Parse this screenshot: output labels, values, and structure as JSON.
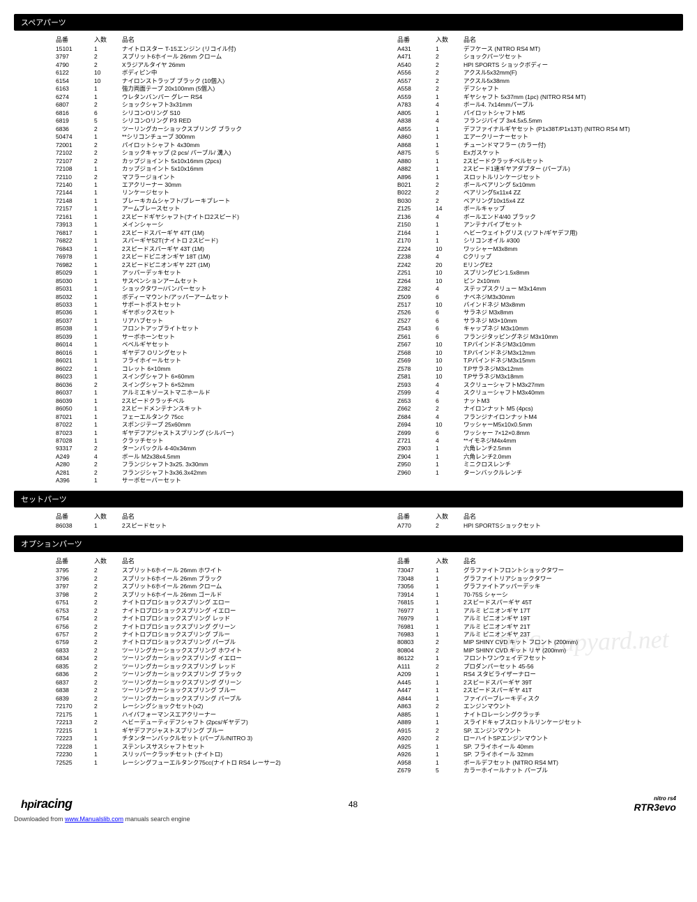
{
  "headers": {
    "pn": "品番",
    "qty": "入数",
    "name": "品名"
  },
  "sections": [
    {
      "title": "スペアパーツ",
      "left": [
        [
          "15101",
          "1",
          "ナイトロスター T-15エンジン (リコイル付)"
        ],
        [
          "3797",
          "2",
          "スプリット6ホイール 26mm クローム"
        ],
        [
          "4790",
          "2",
          "Xラジアルタイヤ 26mm"
        ],
        [
          "6122",
          "10",
          "ボディピン中"
        ],
        [
          "6154",
          "10",
          "ナイロンストラップ ブラック (10個入)"
        ],
        [
          "6163",
          "1",
          "強力両面テープ 20x100mm (5個入)"
        ],
        [
          "6274",
          "1",
          "ウレタンバンパー グレー RS4"
        ],
        [
          "6807",
          "2",
          "ショックシャフト3x31mm"
        ],
        [
          "6816",
          "6",
          "シリコンOリング S10"
        ],
        [
          "6819",
          "5",
          "シリコンOリング P3 RED"
        ],
        [
          "6836",
          "2",
          "ツーリングカーショックスプリング ブラック"
        ],
        [
          "50474",
          "1",
          "**シリコンチューブ 300mm"
        ],
        [
          "72001",
          "2",
          "パイロットシャフト 4x30mm"
        ],
        [
          "72102",
          "2",
          "ショックキャップ (2 pcs/ パープル/ 溝入)"
        ],
        [
          "72107",
          "2",
          "カップジョイント 5x10x16mm (2pcs)"
        ],
        [
          "72108",
          "1",
          "カップジョイント 5x10x16mm"
        ],
        [
          "72110",
          "2",
          "マフラージョイント"
        ],
        [
          "72140",
          "1",
          "エアクリーナー 30mm"
        ],
        [
          "72144",
          "1",
          "リンケージセット"
        ],
        [
          "72148",
          "1",
          "ブレーキカムシャフト/ブレーキプレート"
        ],
        [
          "72157",
          "1",
          "アームブレースセット"
        ],
        [
          "72161",
          "1",
          "2スピードギヤシャフト(ナイトロ2スピード)"
        ],
        [
          "73913",
          "1",
          "メインシャーシ"
        ],
        [
          "76817",
          "1",
          "2スピードスパーギヤ 47T (1M)"
        ],
        [
          "76822",
          "1",
          "スパーギヤ52T(ナイトロ 2スピード)"
        ],
        [
          "76843",
          "1",
          "2スピードスパーギヤ 43T (1M)"
        ],
        [
          "76978",
          "1",
          "2スピードピニオンギヤ 18T (1M)"
        ],
        [
          "76982",
          "1",
          "2スピードピニオンギヤ 22T (1M)"
        ],
        [
          "85029",
          "1",
          "アッパーデッキセット"
        ],
        [
          "85030",
          "1",
          "サスペンションアームセット"
        ],
        [
          "85031",
          "1",
          "ショックタワー/バンパーセット"
        ],
        [
          "85032",
          "1",
          "ボディーマウント/アッパーアームセット"
        ],
        [
          "85033",
          "1",
          "サポートポストセット"
        ],
        [
          "85036",
          "1",
          "ギヤボックスセット"
        ],
        [
          "85037",
          "1",
          "リアハブセット"
        ],
        [
          "85038",
          "1",
          "フロントアップライトセット"
        ],
        [
          "85039",
          "1",
          "サーボホーンセット"
        ],
        [
          "86014",
          "1",
          "ベベルギヤセット"
        ],
        [
          "86016",
          "1",
          "ギヤデフ Oリングセット"
        ],
        [
          "86021",
          "1",
          "フライホイールセット"
        ],
        [
          "86022",
          "1",
          "コレット 6×10mm"
        ],
        [
          "86023",
          "1",
          "スイングシャフト 6×60mm"
        ],
        [
          "86036",
          "2",
          "スイングシャフト 6×52mm"
        ],
        [
          "86037",
          "1",
          "アルミエキゾーストマニホールド"
        ],
        [
          "86039",
          "1",
          "2スピードクラッチベル"
        ],
        [
          "86050",
          "1",
          "2スピードメンテナンスキット"
        ],
        [
          "87021",
          "1",
          "フェーエルタンク 75cc"
        ],
        [
          "87022",
          "1",
          "スポンジテープ 25x60mm"
        ],
        [
          "87023",
          "1",
          "ギヤデフアジャストスプリング (シルバー)"
        ],
        [
          "87028",
          "1",
          "クラッチセット"
        ],
        [
          "93317",
          "2",
          "ターンバックル 4-40x34mm"
        ],
        [
          "A249",
          "4",
          "ボール M2x38x4.5mm"
        ],
        [
          "A280",
          "2",
          "フランジシャフト3x25. 3x30mm"
        ],
        [
          "A281",
          "2",
          "フランジシャフト3x36.3x42mm"
        ],
        [
          "A396",
          "1",
          "サーボセーバーセット"
        ]
      ],
      "right": [
        [
          "A431",
          "1",
          "デフケース (NITRO RS4 MT)"
        ],
        [
          "A471",
          "2",
          "ショックパーツセット"
        ],
        [
          "A540",
          "2",
          "HPI SPORTS ショックボディー"
        ],
        [
          "A556",
          "2",
          "アクスル5x32mm(F)"
        ],
        [
          "A557",
          "2",
          "アクスル5x38mm"
        ],
        [
          "A558",
          "2",
          "デフシャフト"
        ],
        [
          "A559",
          "1",
          "ギヤシャフト 5x37mm (1pc) (NITRO RS4 MT)"
        ],
        [
          "A783",
          "4",
          "ボール4. 7x14mmパープル"
        ],
        [
          "A805",
          "1",
          "パイロットシャフトM5"
        ],
        [
          "A838",
          "4",
          "フランジパイプ 3x4.5x5.5mm"
        ],
        [
          "A855",
          "1",
          "デフファイナルギヤセット (P1x38T/P1x13T) (NITRO RS4 MT)"
        ],
        [
          "A860",
          "1",
          "エアークリーナーセット"
        ],
        [
          "A868",
          "1",
          "チューンドマフラー (カラー付)"
        ],
        [
          "A875",
          "5",
          "Exガスケット"
        ],
        [
          "A880",
          "1",
          "2スピードクラッチベルセット"
        ],
        [
          "A882",
          "1",
          "2スピード1速ギヤアダプター (パープル)"
        ],
        [
          "A896",
          "1",
          "スロットルリンケージセット"
        ],
        [
          "B021",
          "2",
          "ボールベアリング 5x10mm"
        ],
        [
          "B022",
          "2",
          "ベアリング5x11x4 ZZ"
        ],
        [
          "B030",
          "2",
          "ベアリング10x15x4 ZZ"
        ],
        [
          "Z125",
          "14",
          "ボールキャップ"
        ],
        [
          "Z136",
          "4",
          "ボールエンド4/40 ブラック"
        ],
        [
          "Z150",
          "1",
          "アンテナパイプセット"
        ],
        [
          "Z164",
          "1",
          "ヘビーウェイトグリス (ソフト/ギヤデフ用)"
        ],
        [
          "Z170",
          "1",
          "シリコンオイル #300"
        ],
        [
          "Z224",
          "10",
          "ワッシャーM3x8mm"
        ],
        [
          "Z238",
          "4",
          "Cクリップ"
        ],
        [
          "Z242",
          "20",
          "EリングE2"
        ],
        [
          "Z251",
          "10",
          "スプリングピン1.5x8mm"
        ],
        [
          "Z264",
          "10",
          "ピン 2x10mm"
        ],
        [
          "Z282",
          "4",
          "ステップスクリュー M3x14mm"
        ],
        [
          "Z509",
          "6",
          "ナベネジM3x30mm"
        ],
        [
          "Z517",
          "10",
          "バインドネジ M3x8mm"
        ],
        [
          "Z526",
          "6",
          "サラネジ M3x8mm"
        ],
        [
          "Z527",
          "6",
          "サラネジ M3×10mm"
        ],
        [
          "Z543",
          "6",
          "キャップネジ M3x10mm"
        ],
        [
          "Z561",
          "6",
          "フランジタッピングネジ M3x10mm"
        ],
        [
          "Z567",
          "10",
          "T.PバインドネジM3x10mm"
        ],
        [
          "Z568",
          "10",
          "T.PバインドネジM3x12mm"
        ],
        [
          "Z569",
          "10",
          "T.PバインドネジM3x15mm"
        ],
        [
          "Z578",
          "10",
          "T.PサラネジM3x12mm"
        ],
        [
          "Z581",
          "10",
          "T.PサラネジM3x18mm"
        ],
        [
          "Z593",
          "4",
          "スクリューシャフトM3x27mm"
        ],
        [
          "Z599",
          "4",
          "スクリューシャフトM3x40mm"
        ],
        [
          "Z653",
          "6",
          "ナットM3"
        ],
        [
          "Z662",
          "2",
          "ナイロンナット M5 (4pcs)"
        ],
        [
          "Z684",
          "4",
          "フランジナイロンナットM4"
        ],
        [
          "Z694",
          "10",
          "ワッシャーM5x10x0.5mm"
        ],
        [
          "Z699",
          "6",
          "ワッシャー 7×12×0.8mm"
        ],
        [
          "Z721",
          "4",
          "**イモネジM4x4mm"
        ],
        [
          "Z903",
          "1",
          "六角レンチ2.5mm"
        ],
        [
          "Z904",
          "1",
          "六角レンチ2.0mm"
        ],
        [
          "Z950",
          "1",
          "ミニクロスレンチ"
        ],
        [
          "Z960",
          "1",
          "ターンバックルレンチ"
        ]
      ]
    },
    {
      "title": "セットパーツ",
      "left": [
        [
          "86038",
          "1",
          "2スピードセット"
        ]
      ],
      "right": [
        [
          "A770",
          "2",
          "HPI SPORTSショックセット"
        ]
      ]
    },
    {
      "title": "オプションパーツ",
      "left": [
        [
          "3795",
          "2",
          "スプリット6ホイール 26mm ホワイト"
        ],
        [
          "3796",
          "2",
          "スプリット6ホイール 26mm ブラック"
        ],
        [
          "3797",
          "2",
          "スプリット6ホイール 26mm クローム"
        ],
        [
          "3798",
          "2",
          "スプリット6ホイール 26mm ゴールド"
        ],
        [
          "6751",
          "2",
          "ナイトロプロショックスプリング エロー"
        ],
        [
          "6753",
          "2",
          "ナイトロプロショックスプリング イエロー"
        ],
        [
          "6754",
          "2",
          "ナイトロプロショックスプリング レッド"
        ],
        [
          "6756",
          "2",
          "ナイトロプロショックスプリング グリーン"
        ],
        [
          "6757",
          "2",
          "ナイトロプロショックスプリング ブルー"
        ],
        [
          "6759",
          "2",
          "ナイトロプロショックスプリング パープル"
        ],
        [
          "6833",
          "2",
          "ツーリングカーショックスプリング ホワイト"
        ],
        [
          "6834",
          "2",
          "ツーリングカーショックスプリング イエロー"
        ],
        [
          "6835",
          "2",
          "ツーリングカーショックスプリング レッド"
        ],
        [
          "6836",
          "2",
          "ツーリングカーショックスプリング ブラック"
        ],
        [
          "6837",
          "2",
          "ツーリングカーショックスプリング グリーン"
        ],
        [
          "6838",
          "2",
          "ツーリングカーショックスプリング ブルー"
        ],
        [
          "6839",
          "2",
          "ツーリングカーショックスプリング パープル"
        ],
        [
          "72170",
          "2",
          "レーシングショックセット(x2)"
        ],
        [
          "72175",
          "1",
          "ハイパフォーマンスエアクリーナー"
        ],
        [
          "72213",
          "2",
          "ヘビーデューティデフシャフト  (2pcs/ギヤデフ)"
        ],
        [
          "72215",
          "1",
          "ギヤデフアジャストスプリング ブルー"
        ],
        [
          "72223",
          "1",
          "チタンターンバックルセット (パープル/NITRO 3)"
        ],
        [
          "72228",
          "1",
          "ステンレスサスシャフトセット"
        ],
        [
          "72230",
          "1",
          "スリッパークラッチセット (ナイトロ)"
        ],
        [
          "72525",
          "1",
          "レーシングフューエルタンク75cc(ナイトロ RS4 レーサー2)"
        ]
      ],
      "right": [
        [
          "73047",
          "1",
          "グラファイトフロントショックタワー"
        ],
        [
          "73048",
          "1",
          "グラファイトリアショックタワー"
        ],
        [
          "73056",
          "1",
          "グラファイトアッパーデッキ"
        ],
        [
          "73914",
          "1",
          "70-75S シャーシ"
        ],
        [
          "76815",
          "1",
          "2スピードスパーギヤ 45T"
        ],
        [
          "76977",
          "1",
          "アルミ ピニオンギヤ 17T"
        ],
        [
          "76979",
          "1",
          "アルミ ピニオンギヤ 19T"
        ],
        [
          "76981",
          "1",
          "アルミ ピニオンギヤ 21T"
        ],
        [
          "76983",
          "1",
          "アルミ ピニオンギヤ 23T"
        ],
        [
          "80803",
          "2",
          "MIP SHINY CVD キット  フロント (200mm)"
        ],
        [
          "80804",
          "2",
          "MIP SHINY CVD キット  リヤ (200mm)"
        ],
        [
          "86122",
          "1",
          "フロントワンウェイデフセット"
        ],
        [
          "A111",
          "2",
          "プロダンパーセット 45-56"
        ],
        [
          "A209",
          "1",
          "RS4 スタビライザーナロー"
        ],
        [
          "A445",
          "1",
          "2スピードスパーギヤ 39T"
        ],
        [
          "A447",
          "1",
          "2スピードスパーギヤ 41T"
        ],
        [
          "A844",
          "1",
          "ファイバーブレーキディスク"
        ],
        [
          "A863",
          "2",
          "エンジンマウント"
        ],
        [
          "A885",
          "1",
          "ナイトロレーシングクラッチ"
        ],
        [
          "A889",
          "1",
          "スライドキャブスロットルリンケージセット"
        ],
        [
          "A915",
          "2",
          "SP. エンジンマウント"
        ],
        [
          "A920",
          "2",
          "ローハイトSPエンジンマウント"
        ],
        [
          "A925",
          "1",
          "SP. フライホイール 40mm"
        ],
        [
          "A926",
          "1",
          "SP. フライホイール 32mm"
        ],
        [
          "A958",
          "1",
          "ボールデフセット (NITRO RS4 MT)"
        ],
        [
          "Z679",
          "5",
          "カラーホイールナット パープル"
        ]
      ]
    }
  ],
  "footer": {
    "logo_left_prefix": "hpi",
    "logo_left_suffix": "racing",
    "page": "48",
    "logo_right_small": "nitro rs4",
    "logo_right_main": "RTR3evo"
  },
  "watermark": "RCScrapyard.net",
  "download": {
    "prefix": "Downloaded from ",
    "link": "www.Manualslib.com",
    "suffix": " manuals search engine"
  }
}
